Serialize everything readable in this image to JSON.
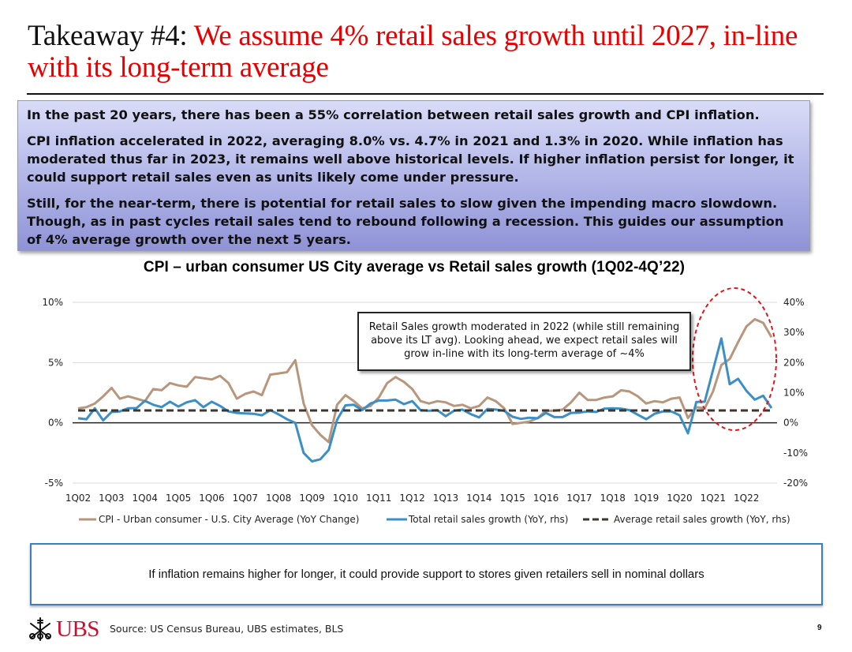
{
  "header": {
    "title_lead": "Takeaway #4: ",
    "title_rest": "We assume 4% retail sales growth until 2027, in-line with its long-term average"
  },
  "summary": {
    "paragraphs": [
      "In the past 20 years, there has been a 55% correlation between retail sales growth and CPI inflation.",
      "CPI inflation accelerated in 2022, averaging 8.0% vs. 4.7% in 2021 and 1.3% in 2020. While inflation has moderated thus far in 2023, it remains well above historical levels. If higher inflation persist for longer, it could support retail sales even as units likely come under pressure.",
      "Still, for the near-term, there is potential for retail sales to slow given the impending macro slowdown. Though, as in past cycles retail sales tend to rebound following a recession. This guides our assumption of 4% average growth over the next 5 years."
    ]
  },
  "callout": {
    "text": "Retail Sales growth moderated in 2022 (while still remaining above its LT avg). Looking ahead, we expect retail sales will grow in-line with its long-term average of ~4%"
  },
  "bottom_note": "If inflation remains higher for longer, it could provide support to stores given retailers sell in nominal dollars",
  "footer": {
    "logo_text": "UBS",
    "source": "Source: US Census Bureau, UBS estimates, BLS",
    "page_number": "9"
  },
  "colors": {
    "title_red": "#e60000",
    "cpi_line": "#b8967b",
    "retail_line": "#3b8fc6",
    "avg_line": "#3d3530",
    "highlight_circle": "#e0141e",
    "bottom_box_border": "#3a7fc1"
  },
  "chart_data": {
    "type": "line",
    "title": "CPI – urban consumer US City average vs Retail sales growth (1Q02-4Q’22)",
    "x_tick_labels": [
      "1Q02",
      "1Q03",
      "1Q04",
      "1Q05",
      "1Q06",
      "1Q07",
      "1Q08",
      "1Q09",
      "1Q10",
      "1Q11",
      "1Q12",
      "1Q13",
      "1Q14",
      "1Q15",
      "1Q16",
      "1Q17",
      "1Q18",
      "1Q19",
      "1Q20",
      "1Q21",
      "1Q22"
    ],
    "quarters_start": "1Q02",
    "quarters_end": "4Q22",
    "y_left": {
      "range": [
        -5,
        10
      ],
      "ticks": [
        -5,
        0,
        5,
        10
      ],
      "tick_labels": [
        "-5%",
        "0%",
        "5%",
        "10%"
      ]
    },
    "y_right": {
      "range": [
        -20,
        40
      ],
      "ticks": [
        -20,
        -10,
        0,
        10,
        20,
        30,
        40
      ],
      "tick_labels": [
        "-20%",
        "-10%",
        "0%",
        "10%",
        "20%",
        "30%",
        "40%"
      ]
    },
    "grid": true,
    "legend_position": "bottom",
    "series": [
      {
        "name": "CPI - Urban consumer - U.S. City Average (YoY Change)",
        "axis": "left",
        "style": "solid",
        "values": [
          1.2,
          1.3,
          1.6,
          2.2,
          2.9,
          2.0,
          2.2,
          2.0,
          1.8,
          2.8,
          2.7,
          3.3,
          3.1,
          3.0,
          3.8,
          3.7,
          3.6,
          3.9,
          3.3,
          2.0,
          2.4,
          2.6,
          2.3,
          4.0,
          4.1,
          4.2,
          5.2,
          1.6,
          -0.2,
          -1.0,
          -1.6,
          1.5,
          2.3,
          1.8,
          1.2,
          1.4,
          2.1,
          3.3,
          3.8,
          3.4,
          2.8,
          1.8,
          1.6,
          1.8,
          1.7,
          1.4,
          1.5,
          1.2,
          1.4,
          2.1,
          1.8,
          1.2,
          -0.1,
          0.0,
          0.1,
          0.4,
          1.0,
          1.0,
          1.1,
          1.7,
          2.5,
          1.9,
          1.9,
          2.1,
          2.2,
          2.7,
          2.6,
          2.2,
          1.6,
          1.8,
          1.7,
          2.0,
          2.1,
          0.4,
          1.3,
          1.2,
          2.6,
          4.8,
          5.3,
          6.7,
          8.0,
          8.6,
          8.3,
          7.1
        ]
      },
      {
        "name": "Total retail sales growth (YoY, rhs)",
        "axis": "right",
        "style": "solid",
        "values": [
          1.5,
          1.2,
          4.8,
          0.8,
          3.6,
          3.8,
          4.8,
          4.9,
          7.3,
          6.0,
          5.2,
          7.0,
          5.4,
          6.8,
          7.5,
          5.2,
          7.0,
          5.6,
          3.8,
          3.3,
          3.1,
          3.0,
          2.5,
          4.2,
          2.8,
          1.2,
          0.0,
          -10.0,
          -12.8,
          -12.1,
          -9.0,
          1.0,
          5.8,
          6.0,
          4.2,
          6.4,
          7.4,
          7.4,
          7.7,
          6.2,
          7.2,
          4.2,
          4.0,
          4.2,
          2.2,
          4.0,
          4.4,
          2.9,
          1.8,
          4.6,
          4.4,
          4.0,
          2.0,
          1.3,
          1.7,
          1.5,
          3.3,
          1.9,
          1.9,
          3.3,
          3.4,
          3.8,
          3.6,
          4.7,
          4.8,
          4.7,
          4.2,
          2.7,
          1.2,
          3.0,
          3.8,
          3.8,
          2.5,
          -3.5,
          6.9,
          7.0,
          17.5,
          28.0,
          12.8,
          14.6,
          10.6,
          7.7,
          9.0,
          4.9
        ]
      },
      {
        "name": "Average retail sales growth (YoY, rhs)",
        "axis": "right",
        "style": "dashed",
        "values": [
          4.1
        ]
      }
    ],
    "annotations": [
      "Retail Sales growth moderated in 2022 (while still remaining above its LT avg). Looking ahead, we expect retail sales will grow in-line with its long-term average of ~4%",
      "red dashed circle highlighting 2021-2022"
    ]
  }
}
